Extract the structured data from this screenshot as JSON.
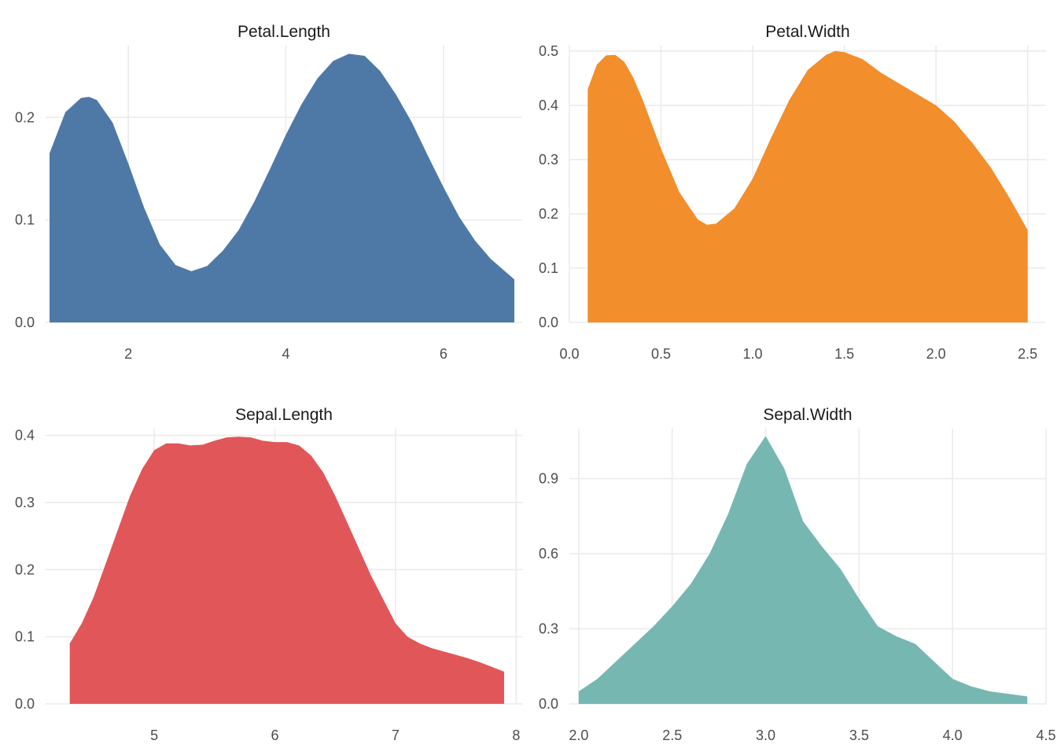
{
  "chart_data": [
    {
      "type": "area",
      "title": "Petal.Length",
      "color": "#4E79A7",
      "xlim": [
        0.95,
        7.0
      ],
      "ylim": [
        0,
        0.27
      ],
      "x_ticks": [
        2,
        4,
        6
      ],
      "x_tick_labels": [
        "2",
        "4",
        "6"
      ],
      "y_ticks": [
        0.0,
        0.1,
        0.2
      ],
      "y_tick_labels": [
        "0.0",
        "0.1",
        "0.2"
      ],
      "grid": true,
      "x": [
        1.0,
        1.2,
        1.4,
        1.5,
        1.6,
        1.8,
        2.0,
        2.2,
        2.4,
        2.6,
        2.8,
        3.0,
        3.2,
        3.4,
        3.6,
        3.8,
        4.0,
        4.2,
        4.4,
        4.6,
        4.8,
        5.0,
        5.2,
        5.4,
        5.6,
        5.8,
        6.0,
        6.2,
        6.4,
        6.6,
        6.9
      ],
      "y": [
        0.165,
        0.205,
        0.219,
        0.22,
        0.217,
        0.195,
        0.155,
        0.112,
        0.076,
        0.056,
        0.05,
        0.055,
        0.07,
        0.09,
        0.118,
        0.15,
        0.183,
        0.213,
        0.238,
        0.255,
        0.262,
        0.26,
        0.245,
        0.222,
        0.195,
        0.163,
        0.132,
        0.103,
        0.08,
        0.062,
        0.042
      ]
    },
    {
      "type": "area",
      "title": "Petal.Width",
      "color": "#F28E2B",
      "xlim": [
        0.0,
        2.6
      ],
      "ylim": [
        0,
        0.51
      ],
      "x_ticks": [
        0.0,
        0.5,
        1.0,
        1.5,
        2.0,
        2.5
      ],
      "x_tick_labels": [
        "0.0",
        "0.5",
        "1.0",
        "1.5",
        "2.0",
        "2.5"
      ],
      "y_ticks": [
        0.0,
        0.1,
        0.2,
        0.3,
        0.4,
        0.5
      ],
      "y_tick_labels": [
        "0.0",
        "0.1",
        "0.2",
        "0.3",
        "0.4",
        "0.5"
      ],
      "grid": true,
      "x": [
        0.1,
        0.15,
        0.2,
        0.25,
        0.3,
        0.35,
        0.4,
        0.5,
        0.6,
        0.7,
        0.75,
        0.8,
        0.9,
        1.0,
        1.1,
        1.2,
        1.3,
        1.4,
        1.45,
        1.5,
        1.6,
        1.7,
        1.8,
        1.9,
        2.0,
        2.1,
        2.2,
        2.3,
        2.4,
        2.5
      ],
      "y": [
        0.43,
        0.475,
        0.492,
        0.493,
        0.48,
        0.45,
        0.41,
        0.32,
        0.24,
        0.19,
        0.18,
        0.182,
        0.21,
        0.265,
        0.34,
        0.41,
        0.465,
        0.493,
        0.5,
        0.498,
        0.485,
        0.46,
        0.44,
        0.42,
        0.4,
        0.37,
        0.33,
        0.285,
        0.23,
        0.17
      ]
    },
    {
      "type": "area",
      "title": "Sepal.Length",
      "color": "#E15759",
      "xlim": [
        4.1,
        8.05
      ],
      "ylim": [
        0,
        0.41
      ],
      "x_ticks": [
        5,
        6,
        7,
        8
      ],
      "x_tick_labels": [
        "5",
        "6",
        "7",
        "8"
      ],
      "y_ticks": [
        0.0,
        0.1,
        0.2,
        0.3,
        0.4
      ],
      "y_tick_labels": [
        "0.0",
        "0.1",
        "0.2",
        "0.3",
        "0.4"
      ],
      "grid": true,
      "x": [
        4.3,
        4.4,
        4.5,
        4.6,
        4.7,
        4.8,
        4.9,
        5.0,
        5.1,
        5.2,
        5.3,
        5.4,
        5.5,
        5.6,
        5.7,
        5.8,
        5.9,
        6.0,
        6.1,
        6.2,
        6.3,
        6.4,
        6.5,
        6.6,
        6.7,
        6.8,
        6.9,
        7.0,
        7.1,
        7.2,
        7.3,
        7.4,
        7.5,
        7.6,
        7.7,
        7.8,
        7.9
      ],
      "y": [
        0.09,
        0.12,
        0.16,
        0.21,
        0.26,
        0.31,
        0.35,
        0.378,
        0.388,
        0.388,
        0.385,
        0.386,
        0.392,
        0.397,
        0.398,
        0.397,
        0.392,
        0.39,
        0.39,
        0.385,
        0.37,
        0.345,
        0.31,
        0.27,
        0.23,
        0.19,
        0.155,
        0.12,
        0.1,
        0.09,
        0.083,
        0.078,
        0.073,
        0.068,
        0.062,
        0.055,
        0.048
      ]
    },
    {
      "type": "area",
      "title": "Sepal.Width",
      "color": "#76B7B2",
      "xlim": [
        1.95,
        4.5
      ],
      "ylim": [
        0,
        1.1
      ],
      "x_ticks": [
        2.0,
        2.5,
        3.0,
        3.5,
        4.0,
        4.5
      ],
      "x_tick_labels": [
        "2.0",
        "2.5",
        "3.0",
        "3.5",
        "4.0",
        "4.5"
      ],
      "y_ticks": [
        0.0,
        0.3,
        0.6,
        0.9
      ],
      "y_tick_labels": [
        "0.0",
        "0.3",
        "0.6",
        "0.9"
      ],
      "grid": true,
      "x": [
        2.0,
        2.1,
        2.2,
        2.3,
        2.4,
        2.5,
        2.6,
        2.7,
        2.8,
        2.9,
        3.0,
        3.1,
        3.2,
        3.3,
        3.4,
        3.5,
        3.6,
        3.7,
        3.8,
        3.9,
        4.0,
        4.1,
        4.2,
        4.3,
        4.4
      ],
      "y": [
        0.05,
        0.1,
        0.17,
        0.24,
        0.31,
        0.39,
        0.48,
        0.6,
        0.76,
        0.96,
        1.07,
        0.94,
        0.73,
        0.63,
        0.54,
        0.42,
        0.31,
        0.27,
        0.24,
        0.17,
        0.1,
        0.07,
        0.05,
        0.04,
        0.03
      ]
    }
  ]
}
